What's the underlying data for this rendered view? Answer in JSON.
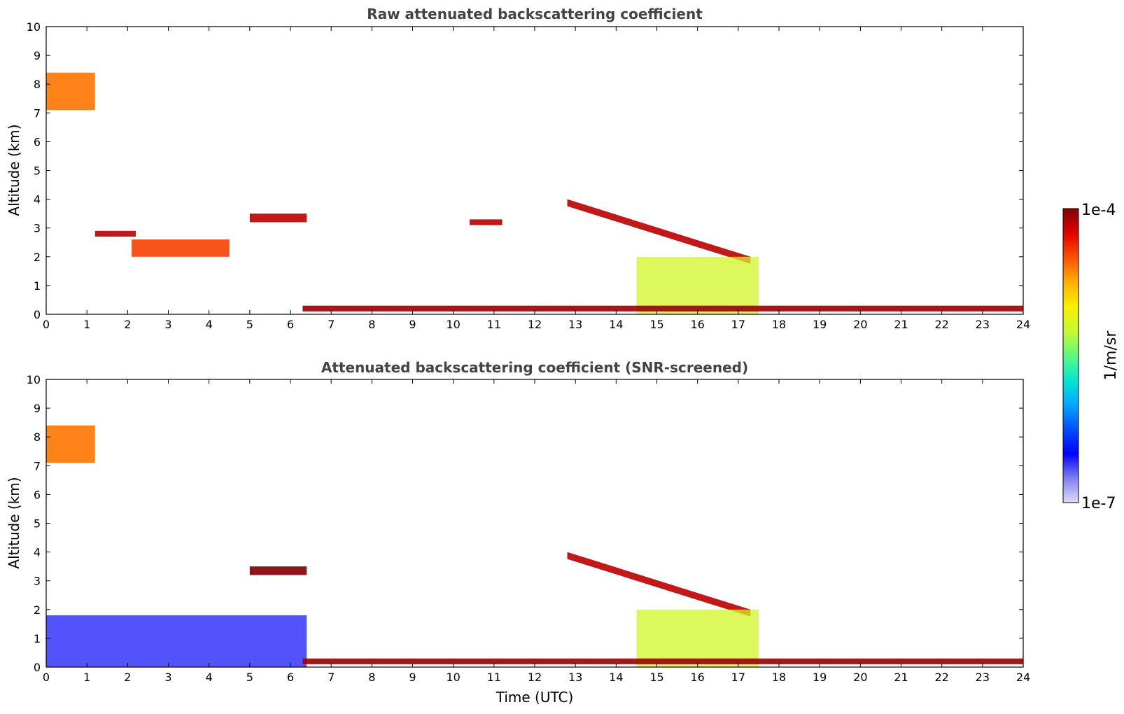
{
  "chart_data": [
    {
      "type": "heatmap",
      "panel": "top",
      "title": "Raw attenuated backscattering coefficient",
      "xlabel": "",
      "ylabel": "Altitude (km)",
      "xlim": [
        0,
        24
      ],
      "ylim": [
        0,
        10
      ],
      "xticks": [
        0,
        1,
        2,
        3,
        4,
        5,
        6,
        7,
        8,
        9,
        10,
        11,
        12,
        13,
        14,
        15,
        16,
        17,
        18,
        19,
        20,
        21,
        22,
        23,
        24
      ],
      "yticks": [
        0,
        1,
        2,
        3,
        4,
        5,
        6,
        7,
        8,
        9,
        10
      ],
      "colorbar": {
        "label": "1/m/sr",
        "min_label": "1e-7",
        "max_label": "1e-4",
        "scale": "log"
      },
      "features": [
        {
          "kind": "cirrus",
          "time": [
            0.0,
            1.2
          ],
          "alt": [
            7.1,
            8.4
          ],
          "level": 0.8
        },
        {
          "kind": "cloud_layer",
          "time": [
            1.2,
            2.2
          ],
          "alt": [
            2.7,
            2.9
          ],
          "level": 0.95
        },
        {
          "kind": "cloud_layer",
          "time": [
            2.1,
            4.5
          ],
          "alt": [
            2.0,
            2.6
          ],
          "level": 0.85
        },
        {
          "kind": "cloud_layer",
          "time": [
            5.0,
            6.4
          ],
          "alt": [
            3.2,
            3.5
          ],
          "level": 0.95
        },
        {
          "kind": "cloud_layer",
          "time": [
            10.4,
            11.2
          ],
          "alt": [
            3.1,
            3.3
          ],
          "level": 0.95
        },
        {
          "kind": "descending_cloud",
          "time": [
            12.8,
            17.3
          ],
          "alt_start": 4.0,
          "alt_end": 2.0,
          "level": 0.95
        },
        {
          "kind": "boundary_layer",
          "time": [
            14.5,
            17.5
          ],
          "alt": [
            0.0,
            2.0
          ],
          "level": 0.6
        },
        {
          "kind": "low_cloud",
          "time": [
            6.3,
            24.0
          ],
          "alt": [
            0.1,
            0.3
          ],
          "level": 0.98
        }
      ]
    },
    {
      "type": "heatmap",
      "panel": "bottom",
      "title": "Attenuated backscattering coefficient (SNR-screened)",
      "xlabel": "Time (UTC)",
      "ylabel": "Altitude (km)",
      "xlim": [
        0,
        24
      ],
      "ylim": [
        0,
        10
      ],
      "xticks": [
        0,
        1,
        2,
        3,
        4,
        5,
        6,
        7,
        8,
        9,
        10,
        11,
        12,
        13,
        14,
        15,
        16,
        17,
        18,
        19,
        20,
        21,
        22,
        23,
        24
      ],
      "yticks": [
        0,
        1,
        2,
        3,
        4,
        5,
        6,
        7,
        8,
        9,
        10
      ],
      "colorbar": {
        "label": "1/m/sr",
        "min_label": "1e-7",
        "max_label": "1e-4",
        "scale": "log"
      },
      "features": [
        {
          "kind": "cirrus",
          "time": [
            0.0,
            1.2
          ],
          "alt": [
            7.1,
            8.4
          ],
          "level": 0.8
        },
        {
          "kind": "boundary_layer",
          "time": [
            0.0,
            6.4
          ],
          "alt": [
            0.0,
            1.8
          ],
          "level": 0.15
        },
        {
          "kind": "cloud_layer",
          "time": [
            5.0,
            6.4
          ],
          "alt": [
            3.2,
            3.5
          ],
          "level": 1.0
        },
        {
          "kind": "descending_cloud",
          "time": [
            12.8,
            17.3
          ],
          "alt_start": 4.0,
          "alt_end": 2.0,
          "level": 0.95
        },
        {
          "kind": "boundary_layer",
          "time": [
            14.5,
            17.5
          ],
          "alt": [
            0.0,
            2.0
          ],
          "level": 0.6
        },
        {
          "kind": "low_cloud",
          "time": [
            6.3,
            24.0
          ],
          "alt": [
            0.1,
            0.3
          ],
          "level": 0.98
        }
      ]
    }
  ],
  "colors": {
    "colormap": [
      "#dcdcf8",
      "#8080f0",
      "#0000ff",
      "#0050ff",
      "#00a8ff",
      "#00e8d0",
      "#60f880",
      "#c8f830",
      "#f8f000",
      "#ffb000",
      "#ff5000",
      "#e00000",
      "#800000"
    ],
    "title": "#444444",
    "axis": "#000000"
  }
}
